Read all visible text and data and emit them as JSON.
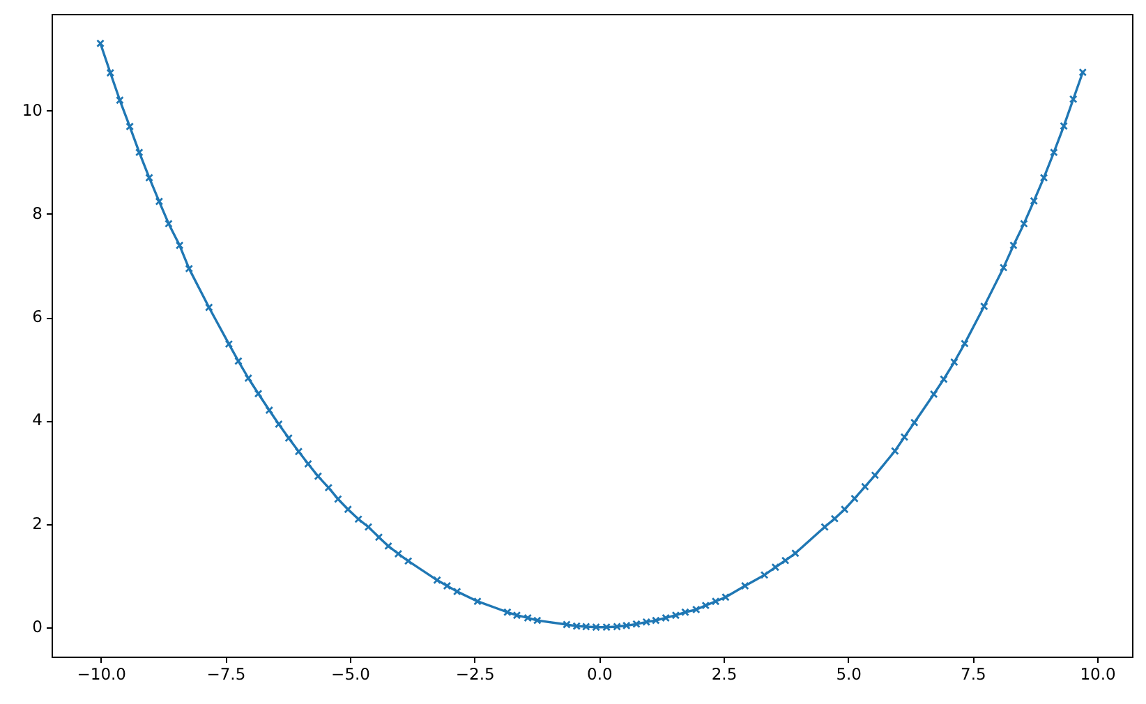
{
  "chart_data": {
    "type": "line",
    "marker": "cross",
    "line_style": "solid",
    "grid": false,
    "x": [
      -10.01,
      -9.81,
      -9.62,
      -9.42,
      -9.23,
      -9.03,
      -8.83,
      -8.64,
      -8.42,
      -8.23,
      -7.83,
      -7.43,
      -7.24,
      -7.04,
      -6.84,
      -6.62,
      -6.43,
      -6.23,
      -6.03,
      -5.84,
      -5.64,
      -5.43,
      -5.24,
      -5.04,
      -4.83,
      -4.63,
      -4.42,
      -4.23,
      -4.03,
      -3.83,
      -3.25,
      -3.05,
      -2.85,
      -2.44,
      -1.84,
      -1.65,
      -1.43,
      -1.24,
      -0.65,
      -0.45,
      -0.26,
      -0.06,
      0.15,
      0.36,
      0.55,
      0.75,
      0.95,
      1.14,
      1.34,
      1.54,
      1.73,
      1.95,
      2.14,
      2.34,
      2.54,
      2.93,
      3.32,
      3.54,
      3.74,
      3.94,
      4.53,
      4.73,
      4.93,
      5.13,
      5.34,
      5.54,
      5.94,
      6.13,
      6.33,
      6.72,
      6.92,
      7.13,
      7.34,
      7.73,
      8.12,
      8.32,
      8.53,
      8.73,
      8.93,
      9.13,
      9.33,
      9.52,
      9.71
    ],
    "series": [
      {
        "color": "#1f77b4",
        "values": [
          11.3,
          10.73,
          10.2,
          9.69,
          9.19,
          8.7,
          8.24,
          7.81,
          7.39,
          6.94,
          6.19,
          5.48,
          5.15,
          4.82,
          4.52,
          4.2,
          3.93,
          3.66,
          3.4,
          3.16,
          2.92,
          2.7,
          2.48,
          2.28,
          2.09,
          1.94,
          1.74,
          1.57,
          1.42,
          1.28,
          0.91,
          0.8,
          0.69,
          0.5,
          0.29,
          0.23,
          0.18,
          0.13,
          0.05,
          0.02,
          0.01,
          0.0,
          0.0,
          0.01,
          0.03,
          0.06,
          0.1,
          0.13,
          0.18,
          0.23,
          0.29,
          0.34,
          0.42,
          0.5,
          0.58,
          0.8,
          1.01,
          1.16,
          1.29,
          1.43,
          1.94,
          2.1,
          2.28,
          2.49,
          2.72,
          2.94,
          3.41,
          3.68,
          3.96,
          4.51,
          4.8,
          5.13,
          5.49,
          6.21,
          6.96,
          7.39,
          7.81,
          8.25,
          8.7,
          9.19,
          9.7,
          10.22,
          10.74
        ]
      }
    ],
    "xlim": [
      -10.99,
      10.7
    ],
    "ylim": [
      -0.57,
      11.87
    ],
    "xticks": [
      {
        "value": -10,
        "label": "−10.0"
      },
      {
        "value": -7.5,
        "label": "−7.5"
      },
      {
        "value": -5,
        "label": "−5.0"
      },
      {
        "value": -2.5,
        "label": "−2.5"
      },
      {
        "value": 0,
        "label": "0.0"
      },
      {
        "value": 2.5,
        "label": "2.5"
      },
      {
        "value": 5,
        "label": "5.0"
      },
      {
        "value": 7.5,
        "label": "7.5"
      },
      {
        "value": 10,
        "label": "10.0"
      }
    ],
    "yticks": [
      0,
      2,
      4,
      6,
      8,
      10
    ]
  }
}
